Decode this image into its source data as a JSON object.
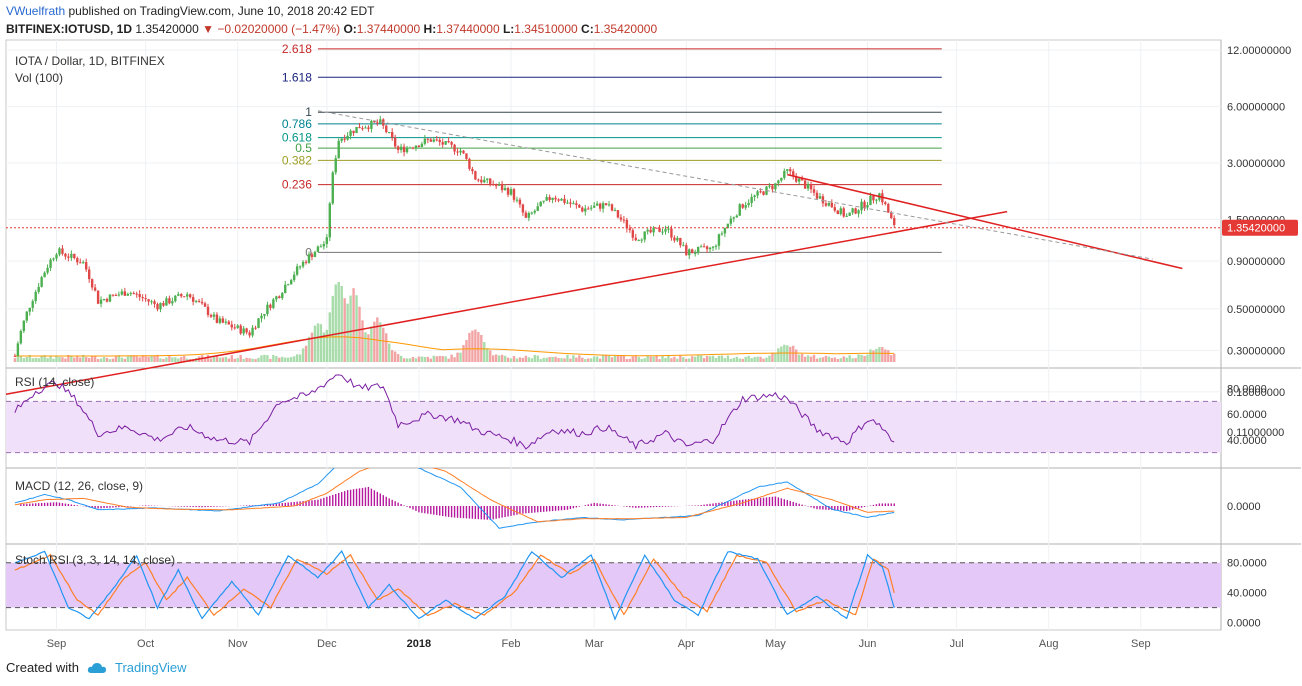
{
  "header": {
    "author": "VWuelfrath",
    "published_text": "published on TradingView.com, June 10, 2018 20:42 EDT",
    "symbol": "BITFINEX:IOTUSD, 1D",
    "last": "1.35420000",
    "change": "−0.02020000 (−1.47%)",
    "o_label": "O:",
    "o": "1.37440000",
    "h_label": "H:",
    "h": "1.37440000",
    "l_label": "L:",
    "l": "1.34510000",
    "c_label": "C:",
    "c": "1.35420000"
  },
  "footer": {
    "created_with": "Created with",
    "brand": "TradingView"
  },
  "colors": {
    "up": "#4caf50",
    "down": "#e04848",
    "trend": "#e02020",
    "rsi": "#7b1fa2",
    "rsi_band": "#f0e0fa",
    "stoch_band": "#e4c8f7",
    "macd_line": "#2196f3",
    "signal_line": "#ff7f27",
    "hist": "#b5179e",
    "price_tag": "#e53935"
  },
  "chart_data": [
    {
      "type": "candlestick",
      "title": "IOTA / Dollar, 1D, BITFINEX",
      "volume_label": "Vol (100)",
      "scale": "log",
      "y_ticks": [
        "12.00000000",
        "6.00000000",
        "3.00000000",
        "1.50000000",
        "0.90000000",
        "0.50000000",
        "0.30000000",
        "0.18000000",
        "0.11000000"
      ],
      "y_tick_values": [
        12,
        6,
        3,
        1.5,
        0.9,
        0.5,
        0.3,
        0.18,
        0.11
      ],
      "x_ticks": [
        "Sep",
        "Oct",
        "Nov",
        "Dec",
        "2018",
        "Feb",
        "Mar",
        "Apr",
        "May",
        "Jun",
        "Jul",
        "Aug",
        "Sep"
      ],
      "last_price_tag": "1.35420000",
      "fib_levels": [
        {
          "label": "2.618",
          "value": 12.2,
          "color": "#c62828"
        },
        {
          "label": "1.618",
          "value": 8.6,
          "color": "#1a237e"
        },
        {
          "label": "1",
          "value": 5.6,
          "color": "#37474f"
        },
        {
          "label": "0.786",
          "value": 4.85,
          "color": "#00838f"
        },
        {
          "label": "0.618",
          "value": 4.1,
          "color": "#009688"
        },
        {
          "label": "0.5",
          "value": 3.6,
          "color": "#43a047"
        },
        {
          "label": "0.382",
          "value": 3.1,
          "color": "#9e9d24"
        },
        {
          "label": "0.236",
          "value": 2.3,
          "color": "#c62828"
        },
        {
          "label": "0",
          "value": 1.0,
          "color": "#757575"
        }
      ],
      "price_path": [
        [
          "2017-08-18",
          0.28
        ],
        [
          "2017-08-25",
          0.62
        ],
        [
          "2017-09-01",
          1.02
        ],
        [
          "2017-09-10",
          0.88
        ],
        [
          "2017-09-15",
          0.55
        ],
        [
          "2017-09-25",
          0.62
        ],
        [
          "2017-10-05",
          0.52
        ],
        [
          "2017-10-15",
          0.6
        ],
        [
          "2017-10-25",
          0.43
        ],
        [
          "2017-11-05",
          0.37
        ],
        [
          "2017-11-15",
          0.6
        ],
        [
          "2017-11-25",
          0.95
        ],
        [
          "2017-12-01",
          1.15
        ],
        [
          "2017-12-05",
          4.0
        ],
        [
          "2017-12-12",
          4.7
        ],
        [
          "2017-12-19",
          4.9
        ],
        [
          "2017-12-25",
          3.5
        ],
        [
          "2018-01-05",
          4.0
        ],
        [
          "2018-01-15",
          3.5
        ],
        [
          "2018-01-20",
          2.5
        ],
        [
          "2018-02-01",
          2.1
        ],
        [
          "2018-02-06",
          1.5
        ],
        [
          "2018-02-15",
          2.0
        ],
        [
          "2018-02-25",
          1.7
        ],
        [
          "2018-03-05",
          1.8
        ],
        [
          "2018-03-15",
          1.2
        ],
        [
          "2018-03-25",
          1.35
        ],
        [
          "2018-04-01",
          1.0
        ],
        [
          "2018-04-10",
          1.05
        ],
        [
          "2018-04-20",
          1.8
        ],
        [
          "2018-05-01",
          2.3
        ],
        [
          "2018-05-05",
          2.7
        ],
        [
          "2018-05-15",
          2.0
        ],
        [
          "2018-05-25",
          1.55
        ],
        [
          "2018-06-05",
          2.05
        ],
        [
          "2018-06-10",
          1.3542
        ]
      ],
      "volume_peaks": [
        [
          "2017-12-05",
          3.2
        ],
        [
          "2017-12-10",
          2.8
        ],
        [
          "2017-12-18",
          1.6
        ],
        [
          "2017-11-28",
          1.4
        ],
        [
          "2018-01-20",
          1.2
        ],
        [
          "2018-05-05",
          0.5
        ],
        [
          "2018-06-05",
          0.45
        ]
      ]
    },
    {
      "type": "line",
      "title": "RSI (14, close)",
      "y_ticks": [
        "80.0000",
        "60.0000",
        "40.0000"
      ],
      "y_tick_values": [
        80,
        60,
        40
      ],
      "band": [
        30,
        70
      ],
      "values": [
        [
          "2017-08-18",
          62
        ],
        [
          "2017-08-25",
          78
        ],
        [
          "2017-09-01",
          85
        ],
        [
          "2017-09-08",
          70
        ],
        [
          "2017-09-15",
          45
        ],
        [
          "2017-09-25",
          50
        ],
        [
          "2017-10-05",
          40
        ],
        [
          "2017-10-15",
          50
        ],
        [
          "2017-10-25",
          40
        ],
        [
          "2017-11-05",
          38
        ],
        [
          "2017-11-15",
          70
        ],
        [
          "2017-11-25",
          75
        ],
        [
          "2017-12-05",
          92
        ],
        [
          "2017-12-12",
          80
        ],
        [
          "2017-12-20",
          82
        ],
        [
          "2017-12-25",
          52
        ],
        [
          "2018-01-05",
          60
        ],
        [
          "2018-01-15",
          55
        ],
        [
          "2018-01-20",
          48
        ],
        [
          "2018-02-01",
          40
        ],
        [
          "2018-02-06",
          35
        ],
        [
          "2018-02-15",
          48
        ],
        [
          "2018-02-25",
          45
        ],
        [
          "2018-03-05",
          50
        ],
        [
          "2018-03-15",
          35
        ],
        [
          "2018-03-25",
          45
        ],
        [
          "2018-04-01",
          35
        ],
        [
          "2018-04-10",
          40
        ],
        [
          "2018-04-20",
          72
        ],
        [
          "2018-05-01",
          75
        ],
        [
          "2018-05-05",
          72
        ],
        [
          "2018-05-15",
          48
        ],
        [
          "2018-05-25",
          38
        ],
        [
          "2018-06-01",
          56
        ],
        [
          "2018-06-05",
          52
        ],
        [
          "2018-06-10",
          36
        ]
      ]
    },
    {
      "type": "line",
      "title": "MACD (12, 26, close, 9)",
      "y_ticks": [
        "0.0000"
      ],
      "y_tick_values": [
        0
      ],
      "series": [
        {
          "values": [
            [
              "2017-08-18",
              0.05
            ],
            [
              "2017-08-28",
              0.18
            ],
            [
              "2017-09-05",
              0.1
            ],
            [
              "2017-09-15",
              -0.06
            ],
            [
              "2017-10-05",
              -0.03
            ],
            [
              "2017-10-25",
              -0.08
            ],
            [
              "2017-11-15",
              0.05
            ],
            [
              "2017-11-28",
              0.35
            ],
            [
              "2017-12-08",
              0.8
            ],
            [
              "2017-12-20",
              0.9
            ],
            [
              "2018-01-01",
              0.6
            ],
            [
              "2018-01-15",
              0.3
            ],
            [
              "2018-01-28",
              -0.35
            ],
            [
              "2018-02-10",
              -0.25
            ],
            [
              "2018-02-25",
              -0.18
            ],
            [
              "2018-03-10",
              -0.22
            ],
            [
              "2018-03-25",
              -0.18
            ],
            [
              "2018-04-05",
              -0.15
            ],
            [
              "2018-04-25",
              0.3
            ],
            [
              "2018-05-05",
              0.38
            ],
            [
              "2018-05-20",
              -0.05
            ],
            [
              "2018-06-01",
              -0.18
            ],
            [
              "2018-06-10",
              -0.1
            ]
          ]
        },
        {
          "values": [
            [
              "2017-08-18",
              0.02
            ],
            [
              "2017-08-28",
              0.1
            ],
            [
              "2017-09-10",
              0.12
            ],
            [
              "2017-09-25",
              -0.02
            ],
            [
              "2017-10-10",
              -0.05
            ],
            [
              "2017-10-30",
              -0.06
            ],
            [
              "2017-11-20",
              0.0
            ],
            [
              "2017-12-01",
              0.2
            ],
            [
              "2017-12-12",
              0.55
            ],
            [
              "2017-12-25",
              0.75
            ],
            [
              "2018-01-10",
              0.55
            ],
            [
              "2018-01-25",
              0.1
            ],
            [
              "2018-02-10",
              -0.25
            ],
            [
              "2018-02-25",
              -0.2
            ],
            [
              "2018-03-15",
              -0.2
            ],
            [
              "2018-04-01",
              -0.18
            ],
            [
              "2018-04-20",
              0.05
            ],
            [
              "2018-05-05",
              0.28
            ],
            [
              "2018-05-20",
              0.1
            ],
            [
              "2018-06-01",
              -0.1
            ],
            [
              "2018-06-10",
              -0.08
            ]
          ]
        }
      ],
      "histogram": [
        [
          "2017-08-20",
          0.03
        ],
        [
          "2017-09-01",
          0.06
        ],
        [
          "2017-09-15",
          -0.04
        ],
        [
          "2017-10-01",
          0.01
        ],
        [
          "2017-10-20",
          -0.02
        ],
        [
          "2017-11-10",
          0.02
        ],
        [
          "2017-11-28",
          0.1
        ],
        [
          "2017-12-08",
          0.25
        ],
        [
          "2017-12-15",
          0.3
        ],
        [
          "2017-12-22",
          0.12
        ],
        [
          "2018-01-01",
          -0.1
        ],
        [
          "2018-01-12",
          -0.18
        ],
        [
          "2018-01-25",
          -0.22
        ],
        [
          "2018-02-05",
          -0.12
        ],
        [
          "2018-02-20",
          -0.06
        ],
        [
          "2018-03-01",
          0.05
        ],
        [
          "2018-03-15",
          -0.03
        ],
        [
          "2018-04-05",
          0.01
        ],
        [
          "2018-04-20",
          0.1
        ],
        [
          "2018-05-01",
          0.15
        ],
        [
          "2018-05-15",
          -0.05
        ],
        [
          "2018-05-25",
          -0.08
        ],
        [
          "2018-06-05",
          0.04
        ]
      ]
    },
    {
      "type": "line",
      "title": "Stoch RSI (3, 3, 14, 14, close)",
      "y_ticks": [
        "80.0000",
        "40.0000",
        "0.0000"
      ],
      "y_tick_values": [
        80,
        40,
        0
      ],
      "band": [
        20,
        80
      ],
      "series": [
        {
          "values": [
            [
              "2017-08-18",
              80
            ],
            [
              "2017-08-28",
              95
            ],
            [
              "2017-09-05",
              20
            ],
            [
              "2017-09-12",
              5
            ],
            [
              "2017-09-20",
              45
            ],
            [
              "2017-09-28",
              90
            ],
            [
              "2017-10-05",
              20
            ],
            [
              "2017-10-12",
              70
            ],
            [
              "2017-10-20",
              5
            ],
            [
              "2017-10-30",
              55
            ],
            [
              "2017-11-08",
              10
            ],
            [
              "2017-11-18",
              90
            ],
            [
              "2017-11-28",
              60
            ],
            [
              "2017-12-06",
              95
            ],
            [
              "2017-12-15",
              20
            ],
            [
              "2017-12-22",
              50
            ],
            [
              "2018-01-01",
              5
            ],
            [
              "2018-01-10",
              30
            ],
            [
              "2018-01-20",
              5
            ],
            [
              "2018-01-30",
              35
            ],
            [
              "2018-02-08",
              95
            ],
            [
              "2018-02-18",
              60
            ],
            [
              "2018-02-28",
              90
            ],
            [
              "2018-03-08",
              5
            ],
            [
              "2018-03-18",
              90
            ],
            [
              "2018-03-28",
              30
            ],
            [
              "2018-04-05",
              10
            ],
            [
              "2018-04-15",
              95
            ],
            [
              "2018-04-25",
              85
            ],
            [
              "2018-05-05",
              10
            ],
            [
              "2018-05-15",
              35
            ],
            [
              "2018-05-25",
              5
            ],
            [
              "2018-06-01",
              90
            ],
            [
              "2018-06-06",
              75
            ],
            [
              "2018-06-10",
              20
            ]
          ]
        },
        {
          "values": [
            [
              "2017-08-18",
              70
            ],
            [
              "2017-08-30",
              90
            ],
            [
              "2017-09-08",
              30
            ],
            [
              "2017-09-15",
              10
            ],
            [
              "2017-09-24",
              60
            ],
            [
              "2017-10-01",
              80
            ],
            [
              "2017-10-08",
              30
            ],
            [
              "2017-10-15",
              60
            ],
            [
              "2017-10-24",
              10
            ],
            [
              "2017-11-03",
              45
            ],
            [
              "2017-11-12",
              20
            ],
            [
              "2017-11-21",
              85
            ],
            [
              "2017-12-01",
              65
            ],
            [
              "2017-12-09",
              90
            ],
            [
              "2017-12-18",
              30
            ],
            [
              "2017-12-25",
              45
            ],
            [
              "2018-01-04",
              10
            ],
            [
              "2018-01-13",
              25
            ],
            [
              "2018-01-23",
              10
            ],
            [
              "2018-02-02",
              40
            ],
            [
              "2018-02-11",
              90
            ],
            [
              "2018-02-21",
              65
            ],
            [
              "2018-03-01",
              85
            ],
            [
              "2018-03-11",
              10
            ],
            [
              "2018-03-21",
              85
            ],
            [
              "2018-03-31",
              35
            ],
            [
              "2018-04-08",
              15
            ],
            [
              "2018-04-18",
              90
            ],
            [
              "2018-04-28",
              80
            ],
            [
              "2018-05-08",
              15
            ],
            [
              "2018-05-18",
              30
            ],
            [
              "2018-05-28",
              10
            ],
            [
              "2018-06-03",
              85
            ],
            [
              "2018-06-08",
              70
            ],
            [
              "2018-06-10",
              40
            ]
          ]
        }
      ]
    }
  ]
}
